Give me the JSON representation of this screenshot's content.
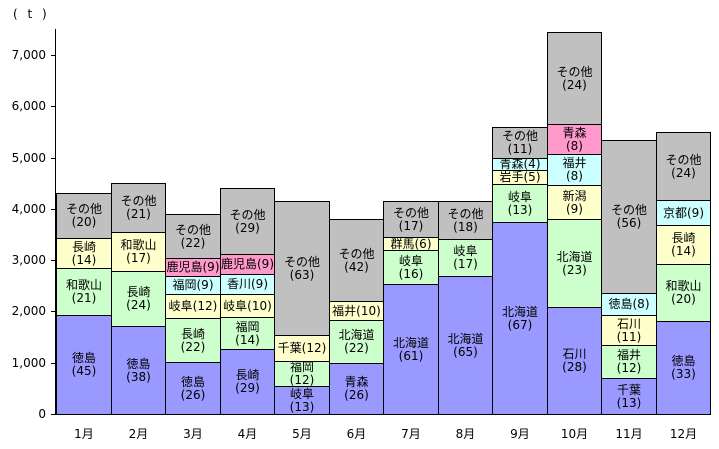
{
  "chart_data": {
    "type": "bar",
    "stacked": true,
    "title": "",
    "xlabel": "",
    "ylabel": "( t )",
    "unit": "t",
    "ylim": [
      0,
      7500
    ],
    "grid": false,
    "legend": "none (labels drawn inside segments)",
    "y_ticks": [
      "0",
      "1,000",
      "2,000",
      "3,000",
      "4,000",
      "5,000",
      "6,000",
      "7,000"
    ],
    "categories": [
      "1月",
      "2月",
      "3月",
      "4月",
      "5月",
      "6月",
      "7月",
      "8月",
      "9月",
      "10月",
      "11月",
      "12月"
    ],
    "palette": {
      "blue": "#9999FF",
      "green": "#CCFFCC",
      "yellow": "#FFFFCC",
      "cyan": "#CCFFFF",
      "pink": "#FF99CC",
      "gray": "#C0C0C0"
    },
    "value_note": "segment numbers in parentheses are percent shares; total_t_est is the bar total in tonnes estimated from the axis",
    "months": [
      {
        "label": "1月",
        "total_t_est": 4300,
        "segments": [
          {
            "name": "徳島",
            "share_pct": 45,
            "color": "blue",
            "two_line": true
          },
          {
            "name": "和歌山",
            "share_pct": 21,
            "color": "green",
            "two_line": true
          },
          {
            "name": "長崎",
            "share_pct": 14,
            "color": "yellow",
            "two_line": true
          },
          {
            "name": "その他",
            "share_pct": 20,
            "color": "gray",
            "two_line": true
          }
        ]
      },
      {
        "label": "2月",
        "total_t_est": 4500,
        "segments": [
          {
            "name": "徳島",
            "share_pct": 38,
            "color": "blue",
            "two_line": true
          },
          {
            "name": "長崎",
            "share_pct": 24,
            "color": "green",
            "two_line": true
          },
          {
            "name": "和歌山",
            "share_pct": 17,
            "color": "yellow",
            "two_line": true
          },
          {
            "name": "その他",
            "share_pct": 21,
            "color": "gray",
            "two_line": true
          }
        ]
      },
      {
        "label": "3月",
        "total_t_est": 3900,
        "segments": [
          {
            "name": "徳島",
            "share_pct": 26,
            "color": "blue",
            "two_line": true
          },
          {
            "name": "長崎",
            "share_pct": 22,
            "color": "green",
            "two_line": true
          },
          {
            "name": "岐阜",
            "share_pct": 12,
            "color": "yellow",
            "two_line": false
          },
          {
            "name": "福岡",
            "share_pct": 9,
            "color": "cyan",
            "two_line": false
          },
          {
            "name": "鹿児島",
            "share_pct": 9,
            "color": "pink",
            "two_line": false
          },
          {
            "name": "その他",
            "share_pct": 22,
            "color": "gray",
            "two_line": true
          }
        ]
      },
      {
        "label": "4月",
        "total_t_est": 4400,
        "segments": [
          {
            "name": "長崎",
            "share_pct": 29,
            "color": "blue",
            "two_line": true
          },
          {
            "name": "福岡",
            "share_pct": 14,
            "color": "green",
            "two_line": true
          },
          {
            "name": "岐阜",
            "share_pct": 10,
            "color": "yellow",
            "two_line": false
          },
          {
            "name": "香川",
            "share_pct": 9,
            "color": "cyan",
            "two_line": false
          },
          {
            "name": "鹿児島",
            "share_pct": 9,
            "color": "pink",
            "two_line": false
          },
          {
            "name": "その他",
            "share_pct": 29,
            "color": "gray",
            "two_line": true
          }
        ]
      },
      {
        "label": "5月",
        "total_t_est": 4150,
        "segments": [
          {
            "name": "岐阜",
            "share_pct": 13,
            "color": "blue",
            "two_line": true
          },
          {
            "name": "福岡",
            "share_pct": 12,
            "color": "green",
            "two_line": true
          },
          {
            "name": "千葉",
            "share_pct": 12,
            "color": "yellow",
            "two_line": false
          },
          {
            "name": "その他",
            "share_pct": 63,
            "color": "gray",
            "two_line": true
          }
        ]
      },
      {
        "label": "6月",
        "total_t_est": 3800,
        "segments": [
          {
            "name": "青森",
            "share_pct": 26,
            "color": "blue",
            "two_line": true
          },
          {
            "name": "北海道",
            "share_pct": 22,
            "color": "green",
            "two_line": true
          },
          {
            "name": "福井",
            "share_pct": 10,
            "color": "yellow",
            "two_line": false
          },
          {
            "name": "その他",
            "share_pct": 42,
            "color": "gray",
            "two_line": true
          }
        ]
      },
      {
        "label": "7月",
        "total_t_est": 4150,
        "segments": [
          {
            "name": "北海道",
            "share_pct": 61,
            "color": "blue",
            "two_line": true
          },
          {
            "name": "岐阜",
            "share_pct": 16,
            "color": "green",
            "two_line": true
          },
          {
            "name": "群馬",
            "share_pct": 6,
            "color": "yellow",
            "two_line": false
          },
          {
            "name": "その他",
            "share_pct": 17,
            "color": "gray",
            "two_line": true
          }
        ]
      },
      {
        "label": "8月",
        "total_t_est": 4150,
        "segments": [
          {
            "name": "北海道",
            "share_pct": 65,
            "color": "blue",
            "two_line": true
          },
          {
            "name": "岐阜",
            "share_pct": 17,
            "color": "green",
            "two_line": true
          },
          {
            "name": "その他",
            "share_pct": 18,
            "color": "gray",
            "two_line": true
          }
        ]
      },
      {
        "label": "9月",
        "total_t_est": 5600,
        "segments": [
          {
            "name": "北海道",
            "share_pct": 67,
            "color": "blue",
            "two_line": true
          },
          {
            "name": "岐阜",
            "share_pct": 13,
            "color": "green",
            "two_line": true
          },
          {
            "name": "岩手",
            "share_pct": 5,
            "color": "yellow",
            "two_line": false
          },
          {
            "name": "青森",
            "share_pct": 4,
            "color": "cyan",
            "two_line": false
          },
          {
            "name": "その他",
            "share_pct": 11,
            "color": "gray",
            "two_line": true
          }
        ]
      },
      {
        "label": "10月",
        "total_t_est": 7450,
        "segments": [
          {
            "name": "石川",
            "share_pct": 28,
            "color": "blue",
            "two_line": true
          },
          {
            "name": "北海道",
            "share_pct": 23,
            "color": "green",
            "two_line": true
          },
          {
            "name": "新潟",
            "share_pct": 9,
            "color": "yellow",
            "two_line": true
          },
          {
            "name": "福井",
            "share_pct": 8,
            "color": "cyan",
            "two_line": true
          },
          {
            "name": "青森",
            "share_pct": 8,
            "color": "pink",
            "two_line": true
          },
          {
            "name": "その他",
            "share_pct": 24,
            "color": "gray",
            "two_line": true
          }
        ]
      },
      {
        "label": "11月",
        "total_t_est": 5350,
        "segments": [
          {
            "name": "千葉",
            "share_pct": 13,
            "color": "blue",
            "two_line": true
          },
          {
            "name": "福井",
            "share_pct": 12,
            "color": "green",
            "two_line": true
          },
          {
            "name": "石川",
            "share_pct": 11,
            "color": "yellow",
            "two_line": true
          },
          {
            "name": "徳島",
            "share_pct": 8,
            "color": "cyan",
            "two_line": false
          },
          {
            "name": "その他",
            "share_pct": 56,
            "color": "gray",
            "two_line": true
          }
        ]
      },
      {
        "label": "12月",
        "total_t_est": 5500,
        "segments": [
          {
            "name": "徳島",
            "share_pct": 33,
            "color": "blue",
            "two_line": true
          },
          {
            "name": "和歌山",
            "share_pct": 20,
            "color": "green",
            "two_line": true
          },
          {
            "name": "長崎",
            "share_pct": 14,
            "color": "yellow",
            "two_line": true
          },
          {
            "name": "京都",
            "share_pct": 9,
            "color": "cyan",
            "two_line": false
          },
          {
            "name": "その他",
            "share_pct": 24,
            "color": "gray",
            "two_line": true
          }
        ]
      }
    ]
  }
}
